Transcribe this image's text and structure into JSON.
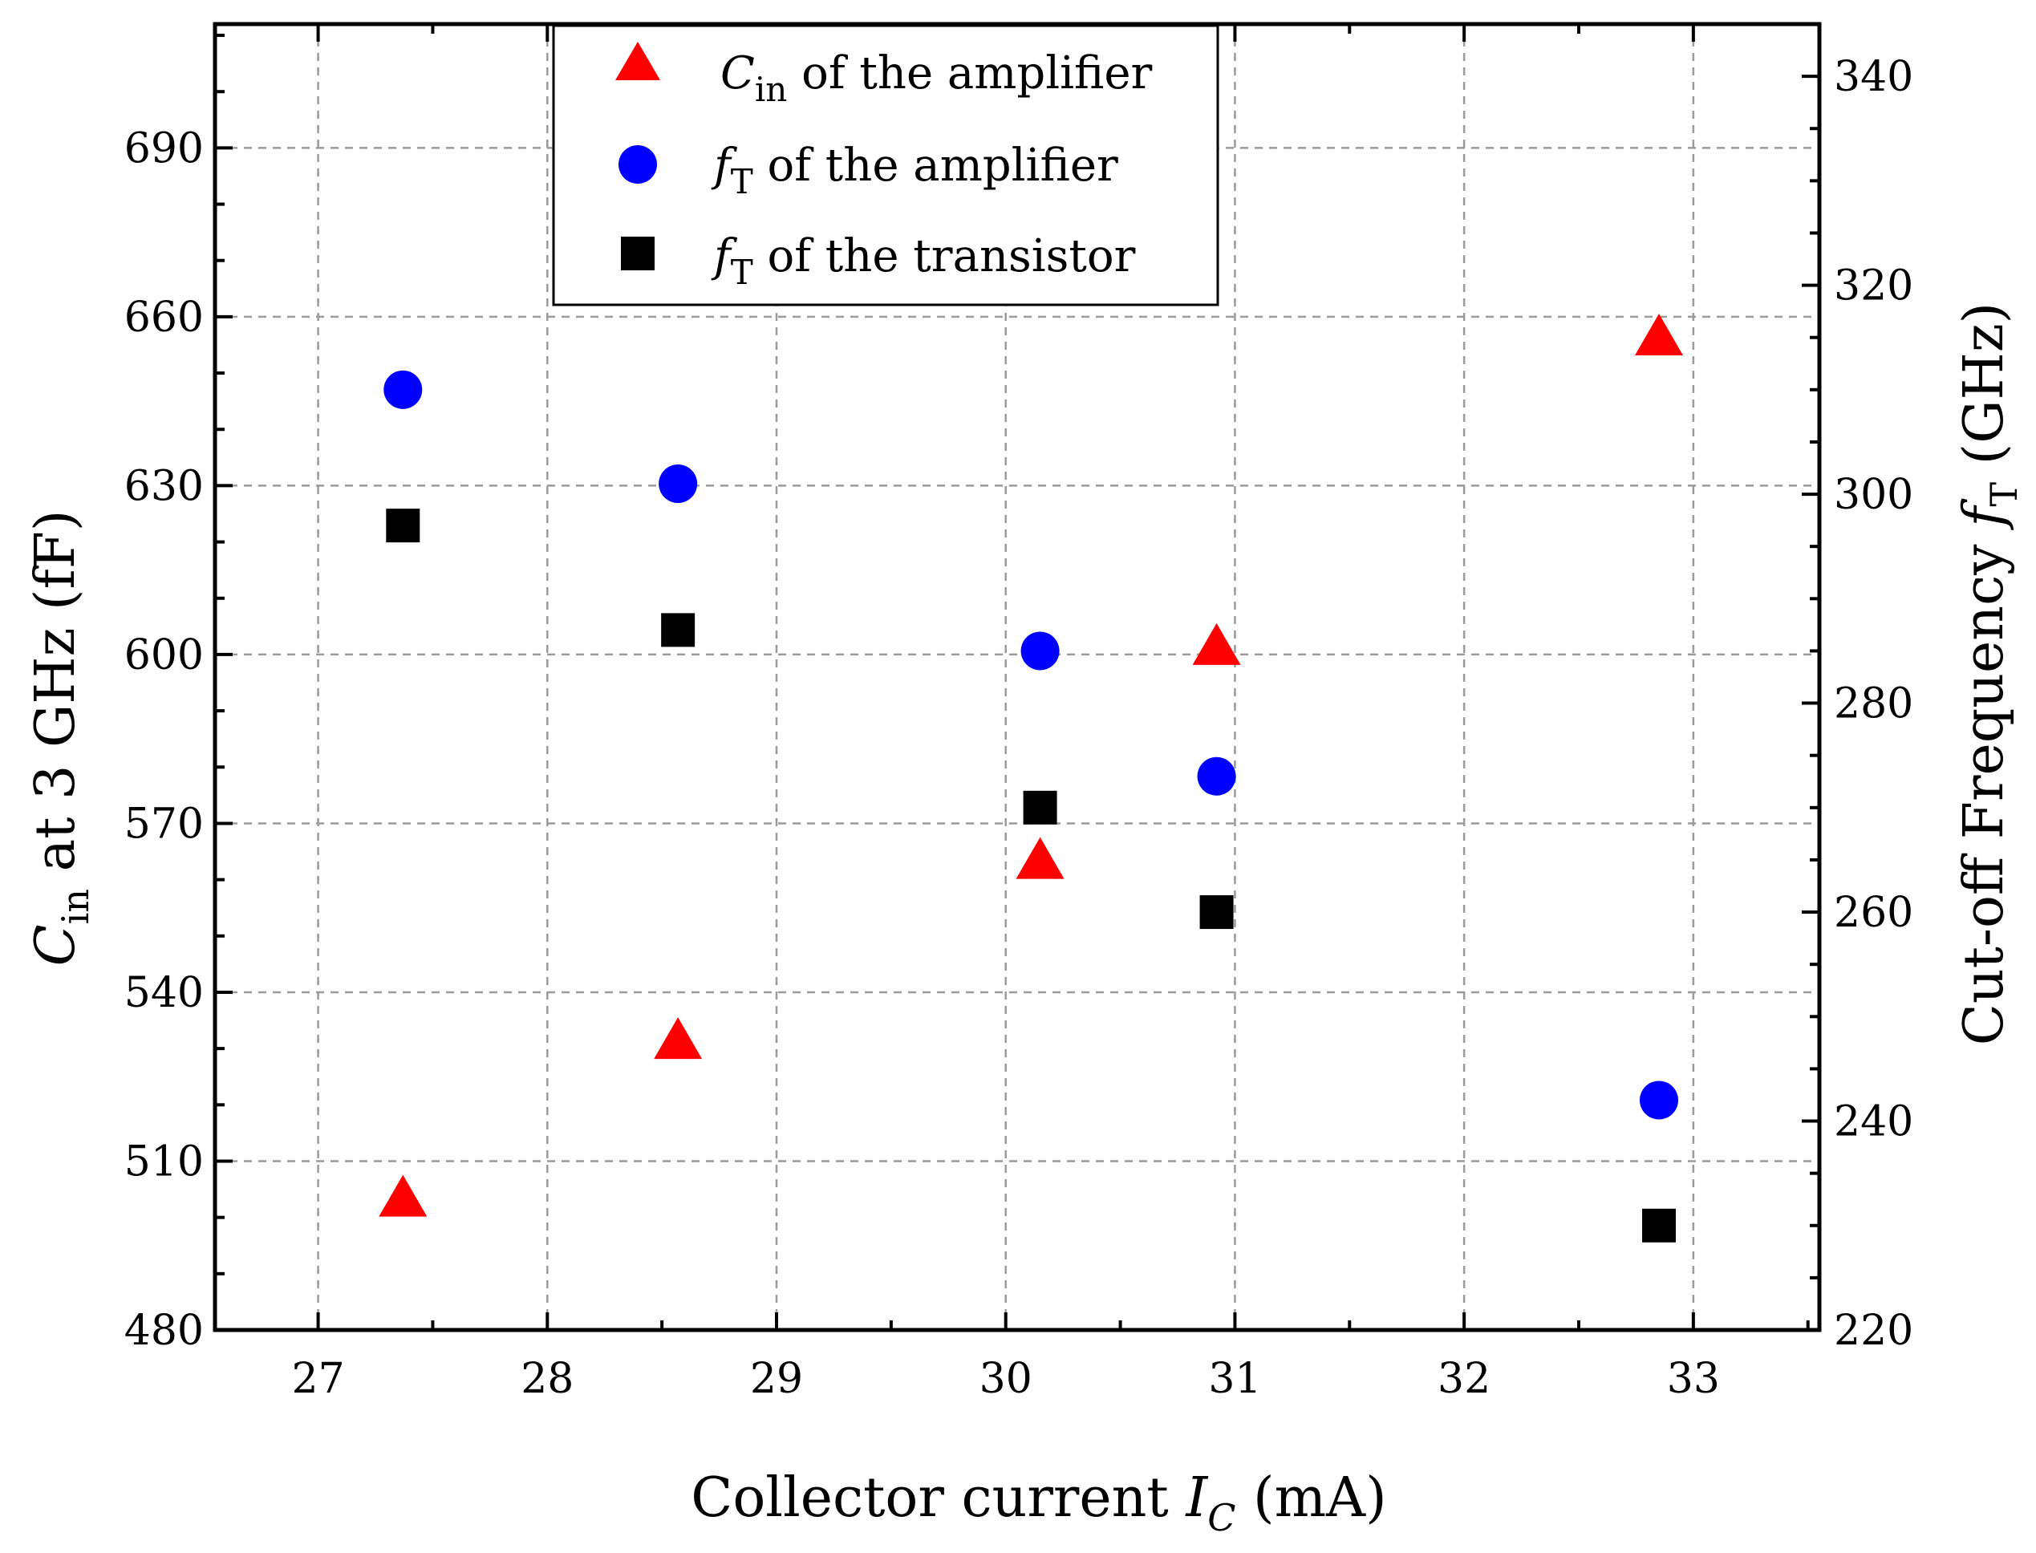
{
  "chart_data": {
    "type": "scatter",
    "xlabel": {
      "main": "Collector current ",
      "var": "I",
      "sub": "C",
      "unit": " (mA)"
    },
    "ylabel_left": {
      "var": "C",
      "sub": "in",
      "rest": " at 3 GHz (fF)"
    },
    "ylabel_right": {
      "main": "Cut-off Frequency ",
      "var": "f",
      "sub": "T",
      "unit": " (GHz)"
    },
    "xlim": [
      26.55,
      33.55
    ],
    "ylim_left": [
      480,
      712
    ],
    "ylim_right": [
      220,
      345
    ],
    "x_ticks": [
      27,
      28,
      29,
      30,
      31,
      32,
      33
    ],
    "x_tick_labels": [
      "27",
      "28",
      "29",
      "30",
      "31",
      "32",
      "33"
    ],
    "y_left_ticks": [
      480,
      510,
      540,
      570,
      600,
      630,
      660,
      690
    ],
    "y_left_tick_labels": [
      "480",
      "510",
      "540",
      "570",
      "600",
      "630",
      "660",
      "690"
    ],
    "y_right_ticks": [
      220,
      240,
      260,
      280,
      300,
      320,
      340
    ],
    "y_right_tick_labels": [
      "220",
      "240",
      "260",
      "280",
      "300",
      "320",
      "340"
    ],
    "grid": true,
    "legend_position": "top-center",
    "series": [
      {
        "name": "Cin of the amplifier",
        "legend": {
          "var": "C",
          "sub": "in",
          "rest": " of the amplifier"
        },
        "axis": "left",
        "marker": "triangle",
        "color": "#ff0000",
        "x": [
          27.37,
          28.57,
          30.15,
          30.92,
          32.85
        ],
        "y": [
          503,
          531,
          563,
          601,
          656
        ]
      },
      {
        "name": "fT of the amplifier",
        "legend": {
          "var": "f",
          "sub": "T",
          "rest": " of the amplifier"
        },
        "axis": "right",
        "marker": "circle",
        "color": "#0000ff",
        "x": [
          27.37,
          28.57,
          30.15,
          30.92,
          32.85
        ],
        "y": [
          310,
          301,
          285,
          273,
          242
        ]
      },
      {
        "name": "fT of the transistor",
        "legend": {
          "var": "f",
          "sub": "T",
          "rest": " of the transistor"
        },
        "axis": "right",
        "marker": "square",
        "color": "#000000",
        "x": [
          27.37,
          28.57,
          30.15,
          30.92,
          32.85
        ],
        "y": [
          297,
          287,
          270,
          260,
          230
        ]
      }
    ]
  }
}
